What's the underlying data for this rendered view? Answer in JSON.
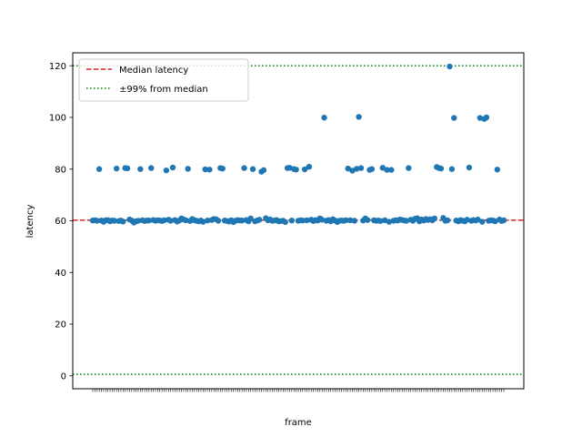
{
  "chart_data": {
    "type": "scatter",
    "xlabel": "frame",
    "ylabel": "latency",
    "ylim": [
      -5,
      125
    ],
    "yticks": [
      0,
      20,
      40,
      60,
      80,
      100,
      120
    ],
    "grid": false,
    "legend_position": "top-left",
    "x_tick_label_note": "x tick labels are dense and overlapping (one per frame), unreadable",
    "series": [
      {
        "type": "scatter",
        "color": "#1f77b4",
        "y": [
          60.1,
          60.2,
          60.0,
          80.0,
          60.1,
          59.6,
          60.2,
          60.3,
          59.8,
          60.1,
          60.0,
          80.2,
          59.9,
          60.1,
          59.7,
          80.4,
          80.3,
          60.5,
          60.1,
          59.3,
          59.8,
          60.0,
          80.0,
          60.2,
          59.9,
          60.1,
          60.1,
          80.4,
          60.3,
          60.0,
          60.2,
          60.1,
          59.9,
          60.2,
          79.5,
          60.4,
          60.0,
          80.6,
          60.3,
          59.7,
          60.1,
          60.9,
          60.5,
          60.2,
          80.1,
          59.9,
          60.7,
          60.2,
          60.0,
          59.8,
          60.1,
          59.6,
          79.9,
          60.1,
          79.8,
          60.3,
          60.7,
          60.6,
          60.0,
          80.4,
          80.2,
          60.1,
          59.9,
          59.7,
          60.2,
          59.5,
          60.0,
          60.3,
          60.1,
          60.1,
          80.4,
          60.3,
          59.8,
          60.9,
          80.0,
          59.8,
          60.1,
          60.4,
          79.0,
          79.6,
          61.0,
          60.2,
          60.5,
          60.0,
          60.1,
          60.3,
          59.8,
          59.9,
          60.0,
          59.5,
          80.4,
          80.5,
          60.1,
          80.0,
          79.8,
          60.0,
          60.2,
          60.1,
          79.9,
          60.2,
          80.9,
          60.4,
          59.9,
          60.3,
          60.1,
          60.9,
          60.4,
          99.9,
          60.0,
          60.3,
          59.8,
          60.6,
          60.1,
          59.5,
          60.0,
          60.1,
          60.0,
          60.2,
          80.2,
          60.2,
          79.4,
          60.0,
          80.1,
          100.2,
          80.4,
          60.1,
          60.9,
          60.3,
          79.7,
          80.0,
          60.2,
          60.0,
          60.1,
          59.9,
          80.5,
          60.2,
          79.7,
          59.6,
          79.7,
          60.0,
          60.2,
          60.1,
          60.5,
          60.3,
          60.1,
          60.0,
          80.4,
          60.4,
          60.0,
          60.8,
          61.0,
          59.8,
          60.5,
          60.1,
          60.7,
          60.3,
          60.6,
          60.2,
          60.9,
          80.8,
          80.4,
          80.2,
          61.1,
          60.0,
          60.2,
          119.7,
          80.0,
          99.8,
          60.1,
          59.8,
          60.3,
          60.0,
          59.8,
          60.4,
          80.6,
          60.0,
          60.3,
          60.1,
          60.5,
          99.8,
          59.6,
          99.4,
          100.0,
          60.0,
          60.2,
          60.1,
          59.8,
          79.8,
          60.5,
          59.9,
          60.2
        ]
      },
      {
        "type": "hline",
        "name": "Median latency",
        "color": "#d62728",
        "style": "dashed",
        "y": 60.2
      },
      {
        "type": "hline",
        "name": "±99% from median",
        "color": "#008000",
        "style": "dotted",
        "y": [
          120.0,
          0.6
        ]
      }
    ]
  }
}
